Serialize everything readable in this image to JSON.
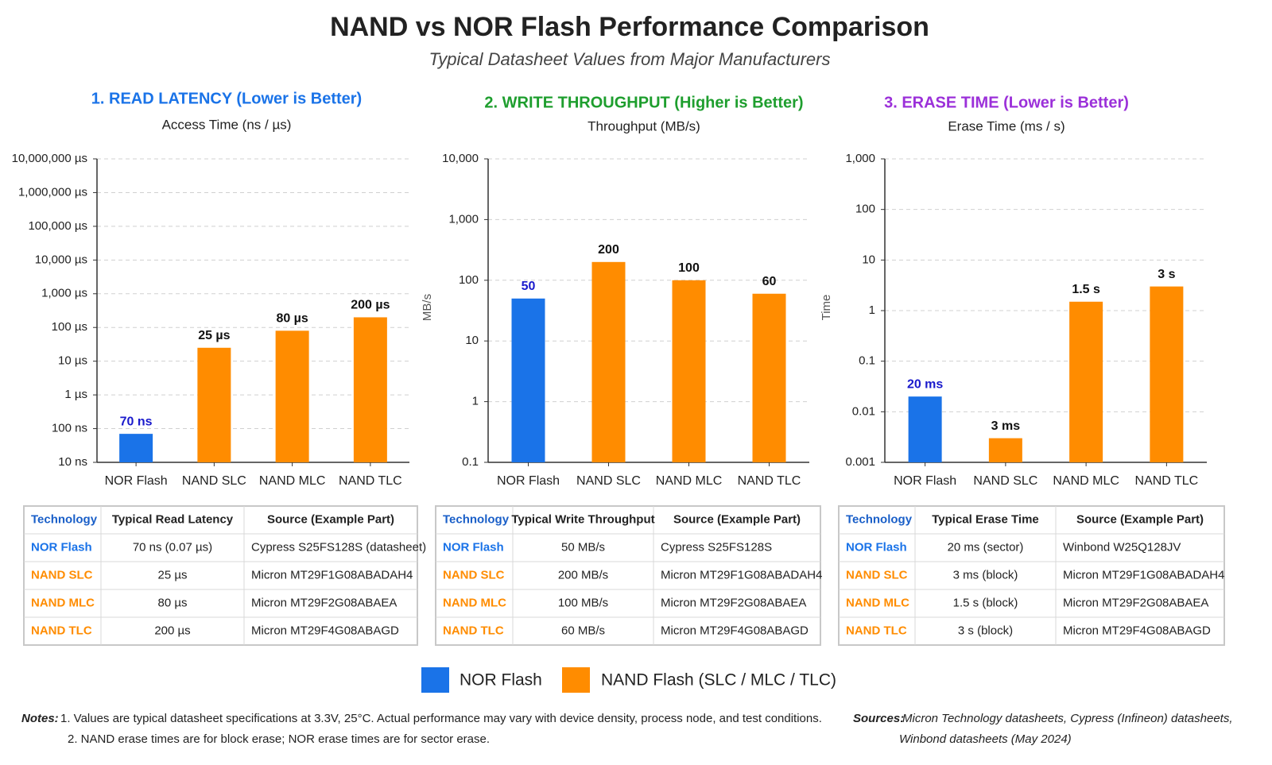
{
  "title": "NAND vs NOR Flash Performance Comparison",
  "subtitle": "Typical Datasheet Values from Major Manufacturers",
  "chart_data": [
    {
      "type": "bar",
      "title": "1. READ LATENCY (Lower is Better)",
      "title_color": "#1a73e8",
      "subtitle": "Access Time (ns / µs)",
      "categories": [
        "NOR Flash",
        "NAND SLC",
        "NAND MLC",
        "NAND TLC"
      ],
      "values": [
        0.07,
        25,
        80,
        200
      ],
      "value_labels": [
        "70 ns",
        "25 µs",
        "80 µs",
        "200 µs"
      ],
      "colors": [
        "#1a73e8",
        "#ff8c00",
        "#ff8c00",
        "#ff8c00"
      ],
      "value_label_colors": [
        "#1a1acc",
        "#111",
        "#111",
        "#111"
      ],
      "log_scale": true,
      "grid": true,
      "ylim": [
        0.01,
        10000000
      ],
      "yticks": [
        {
          "value": 0.01,
          "label": "10 ns"
        },
        {
          "value": 0.1,
          "label": "100 ns"
        },
        {
          "value": 1,
          "label": "1 µs"
        },
        {
          "value": 10,
          "label": "10 µs"
        },
        {
          "value": 100,
          "label": "100 µs"
        },
        {
          "value": 1000,
          "label": "1,000 µs"
        },
        {
          "value": 10000,
          "label": "10,000 µs"
        },
        {
          "value": 100000,
          "label": "100,000 µs"
        },
        {
          "value": 1000000,
          "label": "1,000,000 µs"
        },
        {
          "value": 10000000,
          "label": "10,000,000 µs"
        }
      ]
    },
    {
      "type": "bar",
      "title": "2. WRITE THROUGHPUT (Higher is Better)",
      "title_color": "#1e9e2e",
      "subtitle": "Throughput (MB/s)",
      "ylabel": "MB/s",
      "categories": [
        "NOR Flash",
        "NAND SLC",
        "NAND MLC",
        "NAND TLC"
      ],
      "values": [
        50,
        200,
        100,
        60
      ],
      "colors": [
        "#1a73e8",
        "#ff8c00",
        "#ff8c00",
        "#ff8c00"
      ],
      "value_label_colors": [
        "#1a1acc",
        "#111",
        "#111",
        "#111"
      ],
      "log_scale": true,
      "grid": true,
      "ylim": [
        0.1,
        10000
      ],
      "yticks": [
        0.1,
        1,
        10,
        100,
        {
          "value": 1000,
          "label": "1,000"
        },
        {
          "value": 10000,
          "label": "10,000"
        }
      ]
    },
    {
      "type": "bar",
      "title": "3. ERASE TIME (Lower is Better)",
      "title_color": "#9b30d9",
      "subtitle": "Erase Time (ms / s)",
      "ylabel": "Time",
      "categories": [
        "NOR Flash",
        "NAND SLC",
        "NAND MLC",
        "NAND TLC"
      ],
      "values": [
        0.02,
        0.003,
        1.5,
        3
      ],
      "value_labels": [
        "20 ms",
        "3 ms",
        "1.5 s",
        "3 s"
      ],
      "colors": [
        "#1a73e8",
        "#ff8c00",
        "#ff8c00",
        "#ff8c00"
      ],
      "value_label_colors": [
        "#1a1acc",
        "#111",
        "#111",
        "#111"
      ],
      "log_scale": true,
      "grid": true,
      "ylim": [
        0.001,
        1000
      ],
      "yticks": [
        0.001,
        0.01,
        0.1,
        1,
        10,
        100,
        {
          "value": 1000,
          "label": "1,000"
        }
      ]
    }
  ],
  "tables": [
    {
      "header": [
        "Technology",
        "Typical Read Latency",
        "Source (Example Part)"
      ],
      "rows": [
        [
          "NOR Flash",
          "70 ns (0.07 µs)",
          "Cypress S25FS128S (datasheet)"
        ],
        [
          "NAND SLC",
          "25 µs",
          "Micron MT29F1G08ABADAH4"
        ],
        [
          "NAND MLC",
          "80 µs",
          "Micron MT29F2G08ABAEA"
        ],
        [
          "NAND TLC",
          "200 µs",
          "Micron MT29F4G08ABAGD"
        ]
      ]
    },
    {
      "header": [
        "Technology",
        "Typical Write Throughput",
        "Source (Example Part)"
      ],
      "rows": [
        [
          "NOR Flash",
          "50 MB/s",
          "Cypress S25FS128S"
        ],
        [
          "NAND SLC",
          "200 MB/s",
          "Micron MT29F1G08ABADAH4"
        ],
        [
          "NAND MLC",
          "100 MB/s",
          "Micron MT29F2G08ABAEA"
        ],
        [
          "NAND TLC",
          "60 MB/s",
          "Micron MT29F4G08ABAGD"
        ]
      ]
    },
    {
      "header": [
        "Technology",
        "Typical Erase Time",
        "Source (Example Part)"
      ],
      "rows": [
        [
          "NOR Flash",
          "20 ms (sector)",
          "Winbond W25Q128JV"
        ],
        [
          "NAND SLC",
          "3 ms (block)",
          "Micron MT29F1G08ABADAH4"
        ],
        [
          "NAND MLC",
          "1.5 s (block)",
          "Micron MT29F2G08ABAEA"
        ],
        [
          "NAND TLC",
          "3 s (block)",
          "Micron MT29F4G08ABAGD"
        ]
      ]
    }
  ],
  "legend": [
    {
      "name": "NOR Flash",
      "color": "#1a73e8"
    },
    {
      "name": "NAND Flash (SLC / MLC / TLC)",
      "color": "#ff8c00"
    }
  ],
  "notes": {
    "label": "Notes:",
    "lines": [
      "1. Values are typical datasheet specifications at 3.3V, 25°C. Actual performance may vary with device density, process node, and test conditions.",
      "2. NAND erase times are for block erase; NOR erase times are for sector erase."
    ]
  },
  "sources": {
    "label": "Sources:",
    "lines": [
      "Micron Technology datasheets, Cypress (Infineon) datasheets,",
      "Winbond datasheets (May 2024)"
    ]
  }
}
